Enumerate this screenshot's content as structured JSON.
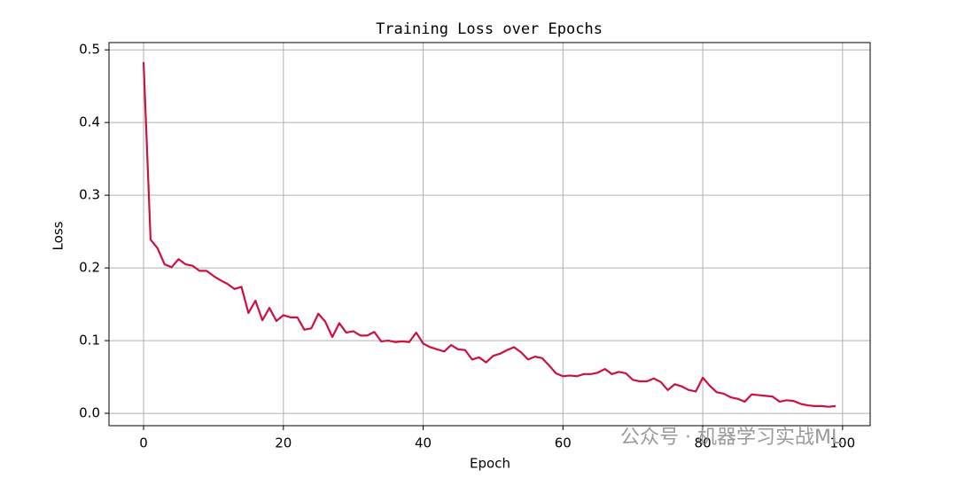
{
  "chart_data": {
    "type": "line",
    "title": "Training Loss over Epochs",
    "x_label": "Epoch",
    "y_label": "Loss",
    "x": [
      0,
      1,
      2,
      3,
      4,
      5,
      6,
      7,
      8,
      9,
      10,
      11,
      12,
      13,
      14,
      15,
      16,
      17,
      18,
      19,
      20,
      21,
      22,
      23,
      24,
      25,
      26,
      27,
      28,
      29,
      30,
      31,
      32,
      33,
      34,
      35,
      36,
      37,
      38,
      39,
      40,
      41,
      42,
      43,
      44,
      45,
      46,
      47,
      48,
      49,
      50,
      51,
      52,
      53,
      54,
      55,
      56,
      57,
      58,
      59,
      60,
      61,
      62,
      63,
      64,
      65,
      66,
      67,
      68,
      69,
      70,
      71,
      72,
      73,
      74,
      75,
      76,
      77,
      78,
      79,
      80,
      81,
      82,
      83,
      84,
      85,
      86,
      87,
      88,
      89,
      90,
      91,
      92,
      93,
      94,
      95,
      96,
      97,
      98,
      99
    ],
    "series": [
      {
        "name": "Loss",
        "color": "#cc1140",
        "values": [
          0.483,
          0.239,
          0.227,
          0.205,
          0.201,
          0.212,
          0.205,
          0.203,
          0.196,
          0.196,
          0.189,
          0.183,
          0.178,
          0.171,
          0.174,
          0.138,
          0.155,
          0.128,
          0.145,
          0.127,
          0.135,
          0.132,
          0.132,
          0.115,
          0.117,
          0.137,
          0.126,
          0.105,
          0.124,
          0.111,
          0.113,
          0.107,
          0.107,
          0.112,
          0.099,
          0.1,
          0.098,
          0.099,
          0.098,
          0.111,
          0.096,
          0.091,
          0.088,
          0.085,
          0.094,
          0.088,
          0.087,
          0.074,
          0.077,
          0.07,
          0.079,
          0.082,
          0.087,
          0.091,
          0.084,
          0.074,
          0.078,
          0.076,
          0.066,
          0.055,
          0.051,
          0.052,
          0.051,
          0.054,
          0.054,
          0.056,
          0.061,
          0.054,
          0.057,
          0.055,
          0.046,
          0.044,
          0.044,
          0.048,
          0.043,
          0.032,
          0.04,
          0.037,
          0.032,
          0.03,
          0.049,
          0.038,
          0.029,
          0.027,
          0.022,
          0.02,
          0.016,
          0.026,
          0.025,
          0.024,
          0.023,
          0.016,
          0.018,
          0.017,
          0.013,
          0.011,
          0.01,
          0.01,
          0.009,
          0.01
        ]
      }
    ],
    "xlim": [
      -4.95,
      103.95
    ],
    "ylim": [
      -0.017,
      0.51
    ],
    "xticks": [
      0,
      20,
      40,
      60,
      80,
      100
    ],
    "yticks": [
      {
        "value": 0,
        "label": "0.0"
      },
      0.1,
      0.2,
      0.3,
      0.4,
      0.5
    ],
    "grid": true,
    "watermark": "公众号 · 机器学习实战ML"
  }
}
